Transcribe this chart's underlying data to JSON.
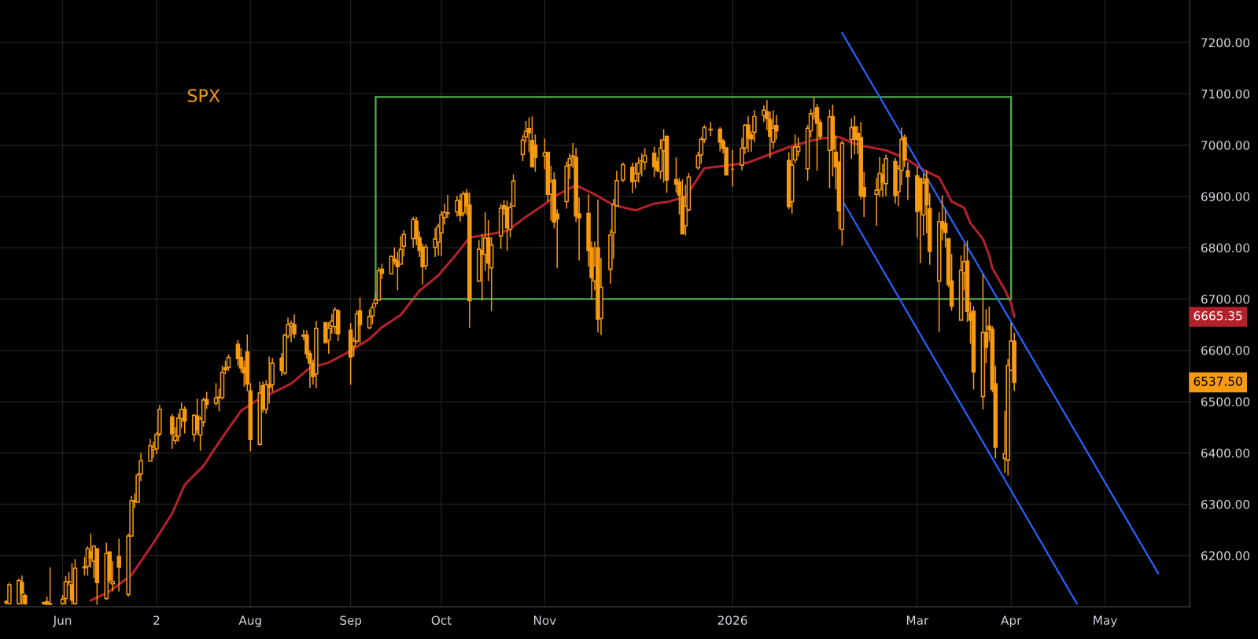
{
  "chart_data": {
    "type": "candlestick",
    "title": "SPX",
    "color": "#f79a0f",
    "x": [
      "2025-05-15",
      "2025-05-16",
      "2025-05-19",
      "2025-05-20",
      "2025-05-21",
      "2025-05-27",
      "2025-05-28",
      "2025-05-29",
      "2025-06-02",
      "2025-06-03",
      "2025-06-04",
      "2025-06-05",
      "2025-06-06",
      "2025-06-09",
      "2025-06-10",
      "2025-06-11",
      "2025-06-12",
      "2025-06-13",
      "2025-06-16",
      "2025-06-17",
      "2025-06-18",
      "2025-06-20",
      "2025-06-23",
      "2025-06-24",
      "2025-06-25",
      "2025-06-26",
      "2025-06-27",
      "2025-06-30",
      "2025-07-01",
      "2025-07-02",
      "2025-07-03",
      "2025-07-07",
      "2025-07-08",
      "2025-07-09",
      "2025-07-10",
      "2025-07-11",
      "2025-07-14",
      "2025-07-15",
      "2025-07-16",
      "2025-07-17",
      "2025-07-18",
      "2025-07-21",
      "2025-07-22",
      "2025-07-23",
      "2025-07-24",
      "2025-07-25",
      "2025-07-28",
      "2025-07-29",
      "2025-07-30",
      "2025-07-31",
      "2025-08-01",
      "2025-08-04",
      "2025-08-05",
      "2025-08-06",
      "2025-08-07",
      "2025-08-08",
      "2025-08-11",
      "2025-08-12",
      "2025-08-13",
      "2025-08-14",
      "2025-08-15",
      "2025-08-18",
      "2025-08-19",
      "2025-08-20",
      "2025-08-21",
      "2025-08-22",
      "2025-08-25",
      "2025-08-26",
      "2025-08-27",
      "2025-08-28",
      "2025-08-29",
      "2025-09-02",
      "2025-09-03",
      "2025-09-04",
      "2025-09-05",
      "2025-09-08",
      "2025-09-09",
      "2025-09-10",
      "2025-09-11",
      "2025-09-12",
      "2025-09-15",
      "2025-09-16",
      "2025-09-17",
      "2025-09-18",
      "2025-09-19",
      "2025-09-22",
      "2025-09-23",
      "2025-09-24",
      "2025-09-25",
      "2025-09-26",
      "2025-09-29",
      "2025-09-30",
      "2025-10-01",
      "2025-10-02",
      "2025-10-03",
      "2025-10-06",
      "2025-10-07",
      "2025-10-08",
      "2025-10-09",
      "2025-10-10",
      "2025-10-13",
      "2025-10-14",
      "2025-10-15",
      "2025-10-16",
      "2025-10-17",
      "2025-10-20",
      "2025-10-21",
      "2025-10-22",
      "2025-10-23",
      "2025-10-24",
      "2025-10-27",
      "2025-10-28",
      "2025-10-29",
      "2025-10-30",
      "2025-10-31",
      "2025-11-03",
      "2025-11-04",
      "2025-11-05",
      "2025-11-06",
      "2025-11-07",
      "2025-11-10",
      "2025-11-11",
      "2025-11-12",
      "2025-11-13",
      "2025-11-14",
      "2025-11-17",
      "2025-11-18",
      "2025-11-19",
      "2025-11-20",
      "2025-11-21",
      "2025-11-24",
      "2025-11-25",
      "2025-11-26",
      "2025-11-28",
      "2025-12-01",
      "2025-12-02",
      "2025-12-03",
      "2025-12-04",
      "2025-12-05",
      "2025-12-08",
      "2025-12-09",
      "2025-12-10",
      "2025-12-11",
      "2025-12-12",
      "2025-12-15",
      "2025-12-16",
      "2025-12-17",
      "2025-12-18",
      "2025-12-19",
      "2025-12-22",
      "2025-12-23",
      "2025-12-24",
      "2025-12-26",
      "2025-12-29",
      "2025-12-30",
      "2025-12-31",
      "2026-01-02",
      "2026-01-05",
      "2026-01-06",
      "2026-01-07",
      "2026-01-08",
      "2026-01-09",
      "2026-01-12",
      "2026-01-13",
      "2026-01-14",
      "2026-01-15",
      "2026-01-16",
      "2026-01-20",
      "2026-01-21",
      "2026-01-22",
      "2026-01-23",
      "2026-01-26",
      "2026-01-27",
      "2026-01-28",
      "2026-01-29",
      "2026-01-30",
      "2026-02-02",
      "2026-02-03",
      "2026-02-04",
      "2026-02-05",
      "2026-02-06",
      "2026-02-09",
      "2026-02-10",
      "2026-02-11",
      "2026-02-12",
      "2026-02-13",
      "2026-02-17",
      "2026-02-18",
      "2026-02-19",
      "2026-02-20",
      "2026-02-23",
      "2026-02-24",
      "2026-02-25",
      "2026-02-26",
      "2026-02-27",
      "2026-03-02",
      "2026-03-03",
      "2026-03-04",
      "2026-03-05",
      "2026-03-06",
      "2026-03-09",
      "2026-03-10",
      "2026-03-11",
      "2026-03-12",
      "2026-03-13",
      "2026-03-16",
      "2026-03-17",
      "2026-03-18",
      "2026-03-19",
      "2026-03-20",
      "2026-03-23",
      "2026-03-24",
      "2026-03-25",
      "2026-03-26",
      "2026-03-27",
      "2026-03-30",
      "2026-03-31",
      "2026-04-01",
      "2026-04-02"
    ],
    "ohlc": [
      [
        6108,
        6113,
        6104,
        6110
      ],
      [
        6106,
        6147,
        6104,
        6143
      ],
      [
        6106,
        6155,
        6104,
        6151
      ],
      [
        6148,
        6161,
        6104,
        6127
      ],
      [
        6122,
        6126,
        6104,
        6106
      ],
      [
        6106,
        6110,
        6104,
        6108
      ],
      [
        6110,
        6120,
        6104,
        6105
      ],
      [
        6106,
        6177,
        6104,
        6105
      ],
      [
        6106,
        6123,
        6104,
        6115
      ],
      [
        6116,
        6160,
        6104,
        6149
      ],
      [
        6148,
        6168,
        6142,
        6149
      ],
      [
        6143,
        6185,
        6104,
        6113
      ],
      [
        6106,
        6193,
        6104,
        6175
      ],
      [
        6176,
        6197,
        6161,
        6178
      ],
      [
        6179,
        6218,
        6161,
        6213
      ],
      [
        6207,
        6243,
        6176,
        6196
      ],
      [
        6189,
        6220,
        6156,
        6218
      ],
      [
        6213,
        6213,
        6104,
        6147
      ],
      [
        6116,
        6225,
        6113,
        6204
      ],
      [
        6207,
        6208,
        6146,
        6152
      ],
      [
        6145,
        6189,
        6130,
        6149
      ],
      [
        6198,
        6233,
        6130,
        6177
      ],
      [
        6124,
        6243,
        6120,
        6238
      ],
      [
        6238,
        6316,
        6238,
        6307
      ],
      [
        6305,
        6321,
        6293,
        6307
      ],
      [
        6304,
        6361,
        6303,
        6357
      ],
      [
        6359,
        6400,
        6345,
        6385
      ],
      [
        6384,
        6427,
        6384,
        6414
      ],
      [
        6407,
        6422,
        6390,
        6411
      ],
      [
        6408,
        6441,
        6397,
        6436
      ],
      [
        6437,
        6494,
        6432,
        6485
      ],
      [
        6470,
        6476,
        6408,
        6437
      ],
      [
        6424,
        6450,
        6417,
        6433
      ],
      [
        6433,
        6477,
        6422,
        6468
      ],
      [
        6467,
        6498,
        6449,
        6485
      ],
      [
        6485,
        6491,
        6438,
        6462
      ],
      [
        6436,
        6476,
        6422,
        6473
      ],
      [
        6472,
        6506,
        6436,
        6445
      ],
      [
        6435,
        6471,
        6404,
        6466
      ],
      [
        6460,
        6508,
        6451,
        6503
      ],
      [
        6504,
        6519,
        6486,
        6495
      ],
      [
        6497,
        6536,
        6492,
        6507
      ],
      [
        6508,
        6525,
        6481,
        6509
      ],
      [
        6508,
        6570,
        6504,
        6557
      ],
      [
        6566,
        6580,
        6553,
        6562
      ],
      [
        6567,
        6592,
        6560,
        6586
      ],
      [
        6612,
        6620,
        6570,
        6584
      ],
      [
        6586,
        6604,
        6557,
        6566
      ],
      [
        6566,
        6580,
        6529,
        6556
      ],
      [
        6597,
        6631,
        6520,
        6534
      ],
      [
        6521,
        6536,
        6403,
        6426
      ],
      [
        6417,
        6539,
        6414,
        6517
      ],
      [
        6531,
        6539,
        6479,
        6486
      ],
      [
        6485,
        6542,
        6476,
        6533
      ],
      [
        6533,
        6588,
        6496,
        6528
      ],
      [
        6533,
        6585,
        6519,
        6575
      ],
      [
        6585,
        6595,
        6550,
        6561
      ],
      [
        6556,
        6632,
        6552,
        6630
      ],
      [
        6628,
        6664,
        6623,
        6650
      ],
      [
        6647,
        6658,
        6616,
        6652
      ],
      [
        6650,
        6670,
        6624,
        6632
      ],
      [
        6630,
        6640,
        6620,
        6627
      ],
      [
        6630,
        6639,
        6583,
        6593
      ],
      [
        6594,
        6600,
        6526,
        6575
      ],
      [
        6575,
        6582,
        6533,
        6549
      ],
      [
        6554,
        6657,
        6526,
        6643
      ],
      [
        6654,
        6654,
        6615,
        6615
      ],
      [
        6620,
        6655,
        6593,
        6643
      ],
      [
        6647,
        6671,
        6632,
        6657
      ],
      [
        6646,
        6684,
        6632,
        6679
      ],
      [
        6677,
        6680,
        6618,
        6632
      ],
      [
        6639,
        6653,
        6533,
        6587
      ],
      [
        6608,
        6625,
        6588,
        6618
      ],
      [
        6618,
        6678,
        6613,
        6671
      ],
      [
        6677,
        6703,
        6614,
        6650
      ],
      [
        6644,
        6680,
        6641,
        6666
      ],
      [
        6667,
        6692,
        6651,
        6683
      ],
      [
        6691,
        6712,
        6684,
        6699
      ],
      [
        6698,
        6762,
        6697,
        6755
      ],
      [
        6758,
        6769,
        6739,
        6750
      ],
      [
        6749,
        6785,
        6748,
        6783
      ],
      [
        6778,
        6801,
        6767,
        6773
      ],
      [
        6774,
        6792,
        6717,
        6763
      ],
      [
        6768,
        6823,
        6768,
        6797
      ],
      [
        6803,
        6834,
        6783,
        6826
      ],
      [
        6818,
        6860,
        6800,
        6855
      ],
      [
        6852,
        6860,
        6805,
        6818
      ],
      [
        6820,
        6832,
        6782,
        6795
      ],
      [
        6801,
        6808,
        6728,
        6763
      ],
      [
        6765,
        6807,
        6757,
        6801
      ],
      [
        6801,
        6839,
        6782,
        6817
      ],
      [
        6811,
        6847,
        6785,
        6841
      ],
      [
        6829,
        6872,
        6784,
        6864
      ],
      [
        6859,
        6886,
        6845,
        6869
      ],
      [
        6867,
        6903,
        6858,
        6868
      ],
      [
        6870,
        6901,
        6861,
        6892
      ],
      [
        6892,
        6905,
        6851,
        6863
      ],
      [
        6868,
        6910,
        6861,
        6905
      ],
      [
        6906,
        6915,
        6864,
        6882
      ],
      [
        6883,
        6908,
        6644,
        6697
      ],
      [
        6735,
        6815,
        6735,
        6797
      ],
      [
        6794,
        6826,
        6697,
        6788
      ],
      [
        6787,
        6869,
        6755,
        6819
      ],
      [
        6819,
        6854,
        6735,
        6770
      ],
      [
        6761,
        6821,
        6676,
        6805
      ],
      [
        6823,
        6886,
        6798,
        6877
      ],
      [
        6882,
        6893,
        6864,
        6876
      ],
      [
        6879,
        6892,
        6794,
        6839
      ],
      [
        6836,
        6888,
        6820,
        6878
      ],
      [
        6881,
        6943,
        6881,
        6930
      ],
      [
        6982,
        7019,
        6969,
        7010
      ],
      [
        7016,
        7047,
        7005,
        7027
      ],
      [
        7032,
        7054,
        6986,
        7024
      ],
      [
        7009,
        7056,
        6956,
        6958
      ],
      [
        7000,
        7021,
        6948,
        6976
      ],
      [
        6979,
        7013,
        6953,
        6985
      ],
      [
        6986,
        6986,
        6890,
        6904
      ],
      [
        6904,
        6960,
        6853,
        6928
      ],
      [
        6932,
        6947,
        6838,
        6850
      ],
      [
        6866,
        6875,
        6760,
        6856
      ],
      [
        6890,
        6968,
        6876,
        6959
      ],
      [
        6961,
        6984,
        6934,
        6974
      ],
      [
        6979,
        7004,
        6956,
        6977
      ],
      [
        6976,
        6995,
        6850,
        6862
      ],
      [
        6866,
        6898,
        6775,
        6858
      ],
      [
        6867,
        6904,
        6763,
        6795
      ],
      [
        6800,
        6812,
        6699,
        6742
      ],
      [
        6735,
        6812,
        6717,
        6765
      ],
      [
        6800,
        6894,
        6635,
        6661
      ],
      [
        6662,
        6780,
        6630,
        6723
      ],
      [
        6758,
        6835,
        6730,
        6825
      ],
      [
        6829,
        6895,
        6778,
        6884
      ],
      [
        6882,
        6950,
        6881,
        6931
      ],
      [
        6932,
        6966,
        6928,
        6962
      ],
      [
        6957,
        6966,
        6906,
        6929
      ],
      [
        6931,
        6966,
        6916,
        6944
      ],
      [
        6945,
        6976,
        6927,
        6965
      ],
      [
        6969,
        6984,
        6939,
        6970
      ],
      [
        6967,
        6994,
        6952,
        6980
      ],
      [
        6984,
        6997,
        6938,
        6958
      ],
      [
        6968,
        6976,
        6947,
        6951
      ],
      [
        6949,
        7012,
        6934,
        6994
      ],
      [
        6989,
        7031,
        6927,
        7010
      ],
      [
        7017,
        7019,
        6907,
        6932
      ],
      [
        6933,
        6976,
        6907,
        6924
      ],
      [
        6928,
        6936,
        6865,
        6903
      ],
      [
        6900,
        6933,
        6826,
        6827
      ],
      [
        6843,
        6923,
        6824,
        6881
      ],
      [
        6874,
        6946,
        6871,
        6938
      ],
      [
        6956,
        6987,
        6952,
        6980
      ],
      [
        6981,
        7016,
        6964,
        7011
      ],
      [
        7011,
        7039,
        7004,
        7034
      ],
      [
        7030,
        7045,
        7018,
        7031
      ],
      [
        7031,
        7035,
        6988,
        7006
      ],
      [
        7008,
        7012,
        6984,
        6994
      ],
      [
        6995,
        6996,
        6941,
        6942
      ],
      [
        6953,
        6991,
        6919,
        6953
      ],
      [
        6961,
        7014,
        6951,
        6994
      ],
      [
        6995,
        7041,
        6983,
        7039
      ],
      [
        7039,
        7057,
        6986,
        7014
      ],
      [
        7020,
        7027,
        6987,
        7012
      ],
      [
        7025,
        7068,
        7006,
        7056
      ],
      [
        7058,
        7078,
        7045,
        7068
      ],
      [
        7065,
        7088,
        7029,
        7052
      ],
      [
        7050,
        7066,
        6975,
        7017
      ],
      [
        7006,
        7068,
        6993,
        7033
      ],
      [
        7038,
        7059,
        7011,
        7028
      ],
      [
        6970,
        6986,
        6875,
        6880
      ],
      [
        6890,
        6996,
        6866,
        6961
      ],
      [
        6971,
        7021,
        6964,
        6996
      ],
      [
        6988,
        7015,
        6978,
        6997
      ],
      [
        6954,
        7039,
        6931,
        7033
      ],
      [
        7028,
        7070,
        7015,
        7061
      ],
      [
        7058,
        7094,
        7050,
        7062
      ],
      [
        7073,
        7080,
        6950,
        7043
      ],
      [
        7044,
        7051,
        7011,
        7017
      ],
      [
        6990,
        7069,
        6916,
        7055
      ],
      [
        7056,
        7079,
        6939,
        6992
      ],
      [
        6986,
        7019,
        6914,
        6958
      ],
      [
        6967,
        6968,
        6836,
        6872
      ],
      [
        6836,
        7009,
        6804,
        7004
      ],
      [
        7011,
        7052,
        6973,
        7034
      ],
      [
        7036,
        7058,
        6982,
        7011
      ],
      [
        7023,
        7037,
        6983,
        7011
      ],
      [
        7015,
        7045,
        6894,
        6902
      ],
      [
        6917,
        6948,
        6860,
        6900
      ],
      [
        6904,
        6936,
        6842,
        6912
      ],
      [
        6913,
        6977,
        6899,
        6945
      ],
      [
        6942,
        6964,
        6899,
        6928
      ],
      [
        6925,
        6982,
        6901,
        6974
      ],
      [
        6968,
        6975,
        6886,
        6902
      ],
      [
        6909,
        6961,
        6881,
        6954
      ],
      [
        6951,
        7034,
        6922,
        7011
      ],
      [
        7015,
        7021,
        6957,
        6971
      ],
      [
        6950,
        6967,
        6893,
        6939
      ],
      [
        6940,
        6958,
        6820,
        6871
      ],
      [
        6935,
        6935,
        6770,
        6874
      ],
      [
        6864,
        6945,
        6824,
        6926
      ],
      [
        6934,
        6951,
        6828,
        6884
      ],
      [
        6876,
        6906,
        6767,
        6793
      ],
      [
        6735,
        6869,
        6636,
        6851
      ],
      [
        6851,
        6902,
        6814,
        6837
      ],
      [
        6847,
        6874,
        6801,
        6830
      ],
      [
        6817,
        6819,
        6723,
        6728
      ],
      [
        6735,
        6788,
        6677,
        6686
      ],
      [
        6659,
        6785,
        6659,
        6756
      ],
      [
        6751,
        6808,
        6717,
        6773
      ],
      [
        6774,
        6814,
        6655,
        6676
      ],
      [
        6673,
        6695,
        6613,
        6659
      ],
      [
        6676,
        6686,
        6524,
        6558
      ],
      [
        6510,
        6748,
        6485,
        6635
      ],
      [
        6635,
        6680,
        6575,
        6606
      ],
      [
        6647,
        6685,
        6617,
        6640
      ],
      [
        6641,
        6647,
        6518,
        6524
      ],
      [
        6535,
        6570,
        6389,
        6411
      ],
      [
        6389,
        6482,
        6361,
        6399
      ],
      [
        6386,
        6583,
        6356,
        6571
      ],
      [
        6561,
        6654,
        6561,
        6618
      ],
      [
        6618,
        6634,
        6521,
        6537.5
      ]
    ],
    "series": [
      {
        "type": "line",
        "color": "#b2222b",
        "x": [
          "2025-06-11",
          "2025-06-17",
          "2025-06-24",
          "2025-06-30",
          "2025-07-07",
          "2025-07-11",
          "2025-07-17",
          "2025-07-23",
          "2025-07-29",
          "2025-08-04",
          "2025-08-08",
          "2025-08-14",
          "2025-08-20",
          "2025-08-26",
          "2025-09-02",
          "2025-09-08",
          "2025-09-12",
          "2025-09-18",
          "2025-09-24",
          "2025-09-30",
          "2025-10-06",
          "2025-10-10",
          "2025-10-16",
          "2025-10-22",
          "2025-10-28",
          "2025-11-03",
          "2025-11-07",
          "2025-11-13",
          "2025-11-19",
          "2025-11-25",
          "2025-12-02",
          "2025-12-08",
          "2025-12-12",
          "2025-12-18",
          "2025-12-24",
          "2025-12-31",
          "2026-01-07",
          "2026-01-13",
          "2026-01-20",
          "2026-01-26",
          "2026-01-30",
          "2026-02-05",
          "2026-02-09",
          "2026-02-13",
          "2026-02-20",
          "2026-02-26",
          "2026-03-04",
          "2026-03-09",
          "2026-03-13",
          "2026-03-17",
          "2026-03-19",
          "2026-03-23",
          "2026-03-25",
          "2026-03-26",
          "2026-03-30",
          "2026-04-01",
          "2026-04-02"
        ],
        "values": [
          6112,
          6130,
          6162,
          6215,
          6282,
          6338,
          6375,
          6430,
          6482,
          6506,
          6517,
          6535,
          6566,
          6576,
          6599,
          6622,
          6645,
          6669,
          6716,
          6746,
          6789,
          6820,
          6826,
          6833,
          6860,
          6885,
          6903,
          6922,
          6904,
          6883,
          6873,
          6886,
          6889,
          6899,
          6955,
          6960,
          6966,
          6980,
          6996,
          7007,
          7013,
          7016,
          7005,
          6998,
          6990,
          6975,
          6952,
          6937,
          6890,
          6878,
          6848,
          6817,
          6785,
          6760,
          6718,
          6692,
          6665.35
        ]
      },
      {
        "type": "line",
        "color": "#4caf50",
        "x": [
          "2025-09-10",
          "2026-04-01"
        ],
        "values": [
          7094,
          7094
        ]
      },
      {
        "type": "line",
        "color": "#4caf50",
        "x": [
          "2025-09-10",
          "2026-04-01"
        ],
        "values": [
          6700,
          6700
        ]
      },
      {
        "type": "line",
        "color": "#2962ff",
        "x": [
          "2026-02-06",
          "2026-05-18"
        ],
        "values": [
          7219,
          6165
        ]
      },
      {
        "type": "line",
        "color": "#2962ff",
        "x": [
          "2026-02-06",
          "2026-04-22"
        ],
        "values": [
          6893,
          6106
        ]
      }
    ],
    "annotations": [
      "6665.35",
      "6537.50"
    ],
    "xlim": [
      "2025-05-13",
      "2026-05-28"
    ],
    "xticks": [
      {
        "value": "2025-06-02",
        "label": "Jun"
      },
      {
        "value": "2025-07-02",
        "label": "2"
      },
      {
        "value": "2025-08-01",
        "label": "Aug"
      },
      {
        "value": "2025-09-02",
        "label": "Sep"
      },
      {
        "value": "2025-10-01",
        "label": "Oct"
      },
      {
        "value": "2025-11-03",
        "label": "Nov"
      },
      {
        "value": "2026-01-02",
        "label": "2026"
      },
      {
        "value": "2026-03-02",
        "label": "Mar"
      },
      {
        "value": "2026-04-01",
        "label": "Apr"
      },
      {
        "value": "2026-05-01",
        "label": "May"
      }
    ],
    "ylim": [
      6100,
      7283
    ],
    "yticks": [
      {
        "value": 6200,
        "label": "6200.00"
      },
      {
        "value": 6300,
        "label": "6300.00"
      },
      {
        "value": 6400,
        "label": "6400.00"
      },
      {
        "value": 6500,
        "label": "6500.00"
      },
      {
        "value": 6600,
        "label": "6600.00"
      },
      {
        "value": 6700,
        "label": "6700.00"
      },
      {
        "value": 6800,
        "label": "6800.00"
      },
      {
        "value": 6900,
        "label": "6900.00"
      },
      {
        "value": 7000,
        "label": "7000.00"
      },
      {
        "value": 7100,
        "label": "7100.00"
      },
      {
        "value": 7200,
        "label": "7200.00"
      }
    ],
    "grid": true
  }
}
